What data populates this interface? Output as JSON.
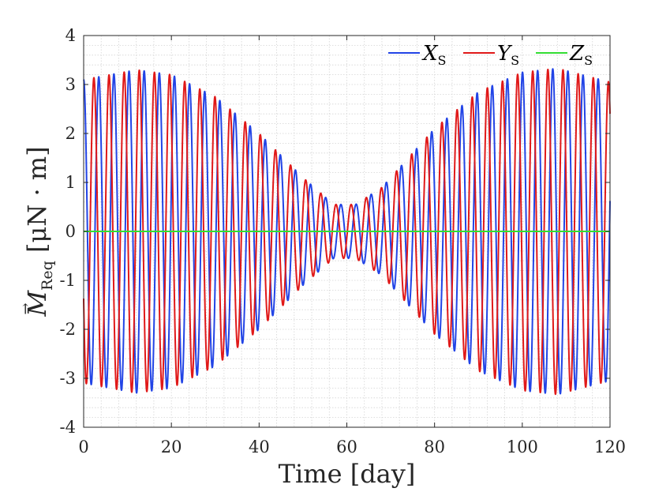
{
  "chart_data": {
    "type": "line",
    "title": "",
    "xlabel": "Time [day]",
    "ylabel": "M_Req [μN · m]",
    "ylabel_parts": {
      "symbol": "M",
      "subscript": "Req",
      "units": "[μN · m]"
    },
    "xlim": [
      0,
      120
    ],
    "ylim": [
      -4,
      4
    ],
    "xticks": [
      0,
      20,
      40,
      60,
      80,
      100,
      120
    ],
    "yticks": [
      -4,
      -3,
      -2,
      -1,
      0,
      1,
      2,
      3,
      4
    ],
    "xtick_labels": [
      "0",
      "20",
      "40",
      "60",
      "80",
      "100",
      "120"
    ],
    "ytick_labels": [
      "-4",
      "-3",
      "-2",
      "-1",
      "0",
      "1",
      "2",
      "3",
      "4"
    ],
    "grid": "minor dotted",
    "legend_position": "top-right",
    "envelope": {
      "description": "sinusoidal torque with amplitude beating",
      "period_day": 3.45,
      "amplitude_points": [
        {
          "t": 0,
          "a": 3.1
        },
        {
          "t": 12,
          "a": 3.3
        },
        {
          "t": 20,
          "a": 3.2
        },
        {
          "t": 30,
          "a": 2.75
        },
        {
          "t": 40,
          "a": 2.0
        },
        {
          "t": 50,
          "a": 1.1
        },
        {
          "t": 57,
          "a": 0.55
        },
        {
          "t": 62,
          "a": 0.55
        },
        {
          "t": 68,
          "a": 0.9
        },
        {
          "t": 80,
          "a": 2.1
        },
        {
          "t": 90,
          "a": 2.85
        },
        {
          "t": 100,
          "a": 3.25
        },
        {
          "t": 108,
          "a": 3.33
        },
        {
          "t": 120,
          "a": 3.05
        }
      ]
    },
    "series": [
      {
        "name": "X_S",
        "label_main": "X",
        "label_sub": "S",
        "color": "#2244e6",
        "phase": 1.5708,
        "kind": "sine"
      },
      {
        "name": "Y_S",
        "label_main": "Y",
        "label_sub": "S",
        "color": "#e01919",
        "phase": 3.6,
        "kind": "sine"
      },
      {
        "name": "Z_S",
        "label_main": "Z",
        "label_sub": "S",
        "color": "#33dd33",
        "value": 0,
        "kind": "constant"
      }
    ]
  }
}
